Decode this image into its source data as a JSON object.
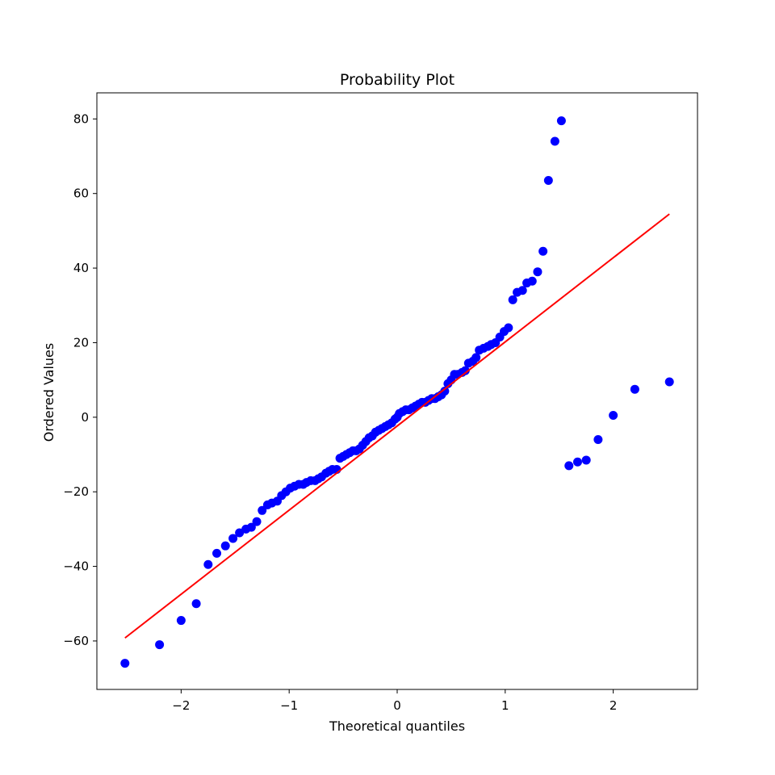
{
  "chart_data": {
    "type": "scatter",
    "title": "Probability Plot",
    "xlabel": "Theoretical quantiles",
    "ylabel": "Ordered Values",
    "xlim": [
      -2.78,
      2.78
    ],
    "ylim": [
      -73,
      87
    ],
    "grid": false,
    "legend": "none",
    "xticks": [
      -2,
      -1,
      0,
      1,
      2
    ],
    "xtick_labels": [
      "−2",
      "−1",
      "0",
      "1",
      "2"
    ],
    "yticks": [
      -60,
      -40,
      -20,
      0,
      20,
      40,
      60,
      80
    ],
    "ytick_labels": [
      "−60",
      "−40",
      "−20",
      "0",
      "20",
      "40",
      "60",
      "80"
    ],
    "series": [
      {
        "type": "scatter",
        "color": "#0000ff",
        "x": [
          -2.52,
          -2.2,
          -2.0,
          -1.86,
          -1.75,
          -1.67,
          -1.59,
          -1.52,
          -1.46,
          -1.4,
          -1.35,
          -1.3,
          -1.25,
          -1.2,
          -1.16,
          -1.11,
          -1.07,
          -1.03,
          -0.99,
          -0.95,
          -0.91,
          -0.87,
          -0.84,
          -0.8,
          -0.76,
          -0.73,
          -0.7,
          -0.66,
          -0.63,
          -0.6,
          -0.56,
          -0.53,
          -0.5,
          -0.47,
          -0.44,
          -0.41,
          -0.38,
          -0.35,
          -0.32,
          -0.29,
          -0.26,
          -0.23,
          -0.2,
          -0.17,
          -0.14,
          -0.11,
          -0.08,
          -0.05,
          -0.02,
          0.0,
          0.02,
          0.05,
          0.08,
          0.11,
          0.14,
          0.17,
          0.2,
          0.23,
          0.26,
          0.29,
          0.32,
          0.35,
          0.38,
          0.41,
          0.44,
          0.47,
          0.5,
          0.53,
          0.56,
          0.6,
          0.63,
          0.66,
          0.7,
          0.73,
          0.76,
          0.8,
          0.84,
          0.87,
          0.91,
          0.95,
          0.99,
          1.03,
          1.07,
          1.11,
          1.16,
          1.2,
          1.25,
          1.3,
          1.35,
          1.4,
          1.46,
          1.52,
          1.59,
          1.67,
          1.75,
          1.86,
          2.0,
          2.2,
          2.52
        ],
        "y": [
          -66,
          -61,
          -54.5,
          -50,
          -39.5,
          -36.5,
          -34.5,
          -32.5,
          -31,
          -30,
          -29.5,
          -28,
          -25,
          -23.5,
          -23,
          -22.5,
          -21,
          -20,
          -19,
          -18.5,
          -18,
          -18,
          -17.5,
          -17,
          -17,
          -16.5,
          -16,
          -15,
          -14.5,
          -14,
          -14,
          -11,
          -10.5,
          -10,
          -9.5,
          -9,
          -9,
          -8.5,
          -7.5,
          -6.5,
          -5.5,
          -5,
          -4,
          -3.5,
          -3,
          -2.5,
          -2,
          -1.5,
          -0.5,
          0,
          1,
          1.5,
          2,
          2,
          2.5,
          3,
          3.5,
          4,
          4,
          4.5,
          5,
          5,
          5.5,
          6,
          7,
          9,
          10,
          11.5,
          11.5,
          12,
          12.5,
          14.5,
          15,
          16,
          18,
          18.5,
          19,
          19.5,
          20,
          21.5,
          23,
          24,
          31.5,
          33.5,
          34,
          36,
          36.5,
          39,
          44.5,
          63.5,
          74,
          79.5,
          -13,
          -12,
          -11.5,
          -6,
          0.5,
          7.5,
          9.5
        ]
      },
      {
        "type": "line",
        "color": "#ff0000",
        "x": [
          -2.52,
          2.52
        ],
        "y": [
          -59.2,
          54.5
        ]
      }
    ]
  }
}
